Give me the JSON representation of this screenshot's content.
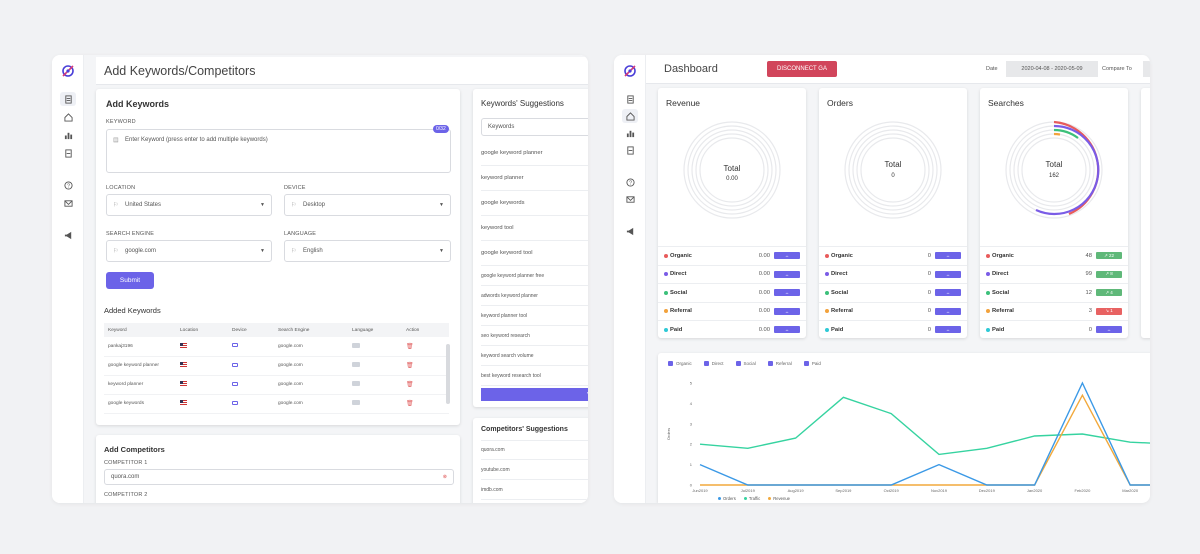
{
  "colors": {
    "accent": "#6c63e8",
    "danger": "#d1455b",
    "organic": "#e85b5b",
    "direct": "#7a5ce6",
    "social": "#3cc07a",
    "referral": "#f2a23c",
    "paid": "#2ec9d6",
    "orders": "#3b99e6",
    "traffic": "#36d3a0",
    "revenue": "#f2a93c",
    "up": "#5fb879",
    "down": "#e86262"
  },
  "left": {
    "title": "Add Keywords/Competitors",
    "add_keywords": {
      "title": "Add Keywords",
      "keyword_label": "KEYWORD",
      "keyword_placeholder": "Enter Keyword (press enter to add multiple keywords)",
      "counter": "0/32",
      "location_label": "LOCATION",
      "location_value": "United States",
      "device_label": "DEVICE",
      "device_value": "Desktop",
      "engine_label": "SEARCH ENGINE",
      "engine_value": "google.com",
      "language_label": "LANGUAGE",
      "language_value": "English",
      "submit": "Submit"
    },
    "added_keywords": {
      "title": "Added Keywords",
      "columns": [
        "Keyword",
        "Location",
        "Device",
        "Search Engine",
        "Language",
        "Action"
      ],
      "rows": [
        {
          "keyword": "pankaj3196",
          "engine": "google.com"
        },
        {
          "keyword": "google keyword planner",
          "engine": "google.com"
        },
        {
          "keyword": "keyword planner",
          "engine": "google.com"
        },
        {
          "keyword": "google keywords",
          "engine": "google.com"
        }
      ]
    },
    "add_competitors": {
      "title": "Add Competitors",
      "competitor1_label": "COMPETITOR 1",
      "competitor1_value": "quora.com",
      "competitor2_label": "COMPETITOR 2"
    },
    "keyword_suggestions": {
      "title": "Keywords' Suggestions",
      "items": [
        "Keywords",
        "google keyword planner",
        "keyword planner",
        "google keywords",
        "keyword tool",
        "google keyword tool",
        "google keyword planner free",
        "adwords keyword planner",
        "keyword planner tool",
        "seo keyword research",
        "keyword search volume",
        "best keyword research tool"
      ],
      "view": "View"
    },
    "competitor_suggestions": {
      "title": "Competitors' Suggestions",
      "items": [
        "quora.com",
        "youtube.com",
        "imdb.com"
      ]
    }
  },
  "right": {
    "title": "Dashboard",
    "disconnect": "DISCONNECT GA",
    "date_label": "Date",
    "date_value": "2020-04-08 - 2020-05-09",
    "compare_label": "Compare To",
    "metrics": [
      {
        "title": "Revenue",
        "total_label": "Total",
        "total": "0.00",
        "rows": [
          {
            "name": "Organic",
            "value": "0.00",
            "change": "↔"
          },
          {
            "name": "Direct",
            "value": "0.00",
            "change": "↔"
          },
          {
            "name": "Social",
            "value": "0.00",
            "change": "↔"
          },
          {
            "name": "Referral",
            "value": "0.00",
            "change": "↔"
          },
          {
            "name": "Paid",
            "value": "0.00",
            "change": "↔"
          }
        ]
      },
      {
        "title": "Orders",
        "total_label": "Total",
        "total": "0",
        "rows": [
          {
            "name": "Organic",
            "value": "0",
            "change": "↔"
          },
          {
            "name": "Direct",
            "value": "0",
            "change": "↔"
          },
          {
            "name": "Social",
            "value": "0",
            "change": "↔"
          },
          {
            "name": "Referral",
            "value": "0",
            "change": "↔"
          },
          {
            "name": "Paid",
            "value": "0",
            "change": "↔"
          }
        ]
      },
      {
        "title": "Searches",
        "total_label": "Total",
        "total": "162",
        "rows": [
          {
            "name": "Organic",
            "value": "48",
            "change": "↗ 22"
          },
          {
            "name": "Direct",
            "value": "99",
            "change": "↗ 8"
          },
          {
            "name": "Social",
            "value": "12",
            "change": "↗ 4"
          },
          {
            "name": "Referral",
            "value": "3",
            "change": "↘ 1"
          },
          {
            "name": "Paid",
            "value": "0",
            "change": "↔"
          }
        ]
      }
    ],
    "chart_legend_top": [
      "Organic",
      "Direct",
      "Social",
      "Referral",
      "Paid"
    ],
    "chart_legend_bottom": [
      "Orders",
      "Traffic",
      "Revenue"
    ],
    "chart_data": {
      "type": "line",
      "ylabel": "Orders",
      "ylim": [
        0,
        5
      ],
      "yticks": [
        "0",
        "1",
        "2",
        "3",
        "4",
        "5"
      ],
      "x": [
        "Jun2019",
        "Jul2019",
        "Aug2019",
        "Sep2019",
        "Oct2019",
        "Nov2019",
        "Dec2019",
        "Jan2020",
        "Feb2020",
        "Mar2020",
        "Apr20"
      ],
      "series": [
        {
          "name": "Orders",
          "values": [
            1,
            0,
            0,
            0,
            0,
            1,
            0,
            0,
            5,
            0,
            0
          ]
        },
        {
          "name": "Traffic",
          "values": [
            2,
            1.8,
            2.3,
            4.3,
            3.5,
            1.5,
            1.8,
            2.4,
            2.5,
            2.1,
            2
          ]
        },
        {
          "name": "Revenue",
          "values": [
            0,
            0,
            0,
            0,
            0,
            0,
            0,
            0,
            4.4,
            0,
            0
          ]
        }
      ]
    }
  }
}
